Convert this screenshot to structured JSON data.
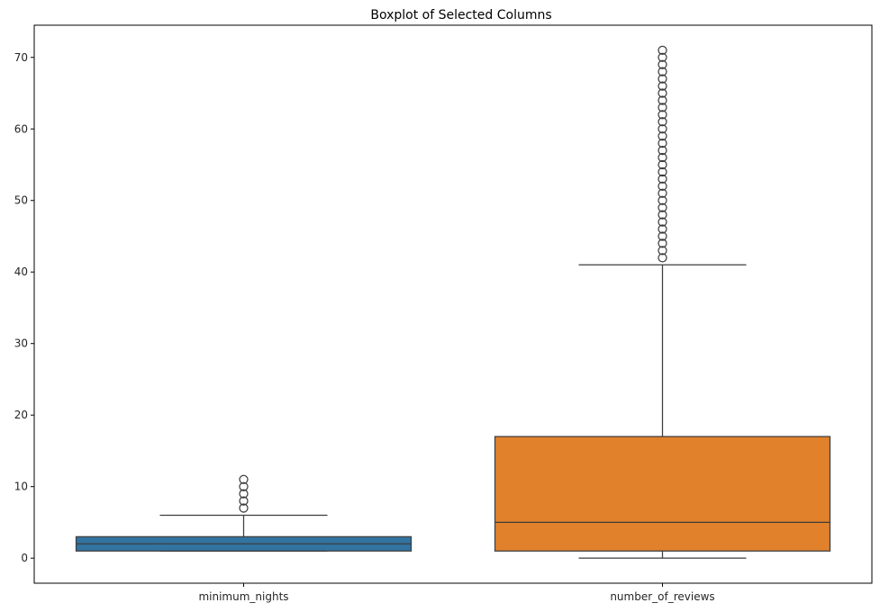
{
  "chart_data": {
    "type": "boxplot",
    "title": "Boxplot of Selected Columns",
    "xlabel": "",
    "ylabel": "",
    "ylim": [
      -3.5,
      74.5
    ],
    "yticks": [
      0,
      10,
      20,
      30,
      40,
      50,
      60,
      70
    ],
    "grid": false,
    "categories": [
      "minimum_nights",
      "number_of_reviews"
    ],
    "boxes": [
      {
        "category": "minimum_nights",
        "color": "#3274a1",
        "whisker_low": 1,
        "q1": 1,
        "median": 2,
        "q3": 3,
        "whisker_high": 6,
        "outliers": [
          7,
          8,
          9,
          10,
          11
        ]
      },
      {
        "category": "number_of_reviews",
        "color": "#e1812c",
        "whisker_low": 0,
        "q1": 1,
        "median": 5,
        "q3": 17,
        "whisker_high": 41,
        "outliers": [
          42,
          43,
          44,
          45,
          46,
          47,
          48,
          49,
          50,
          51,
          52,
          53,
          54,
          55,
          56,
          57,
          58,
          59,
          60,
          61,
          62,
          63,
          64,
          65,
          66,
          67,
          68,
          69,
          70,
          71
        ]
      }
    ],
    "colors": {
      "axis": "#000000",
      "line": "#3d3d3d",
      "text": "#262626"
    }
  }
}
